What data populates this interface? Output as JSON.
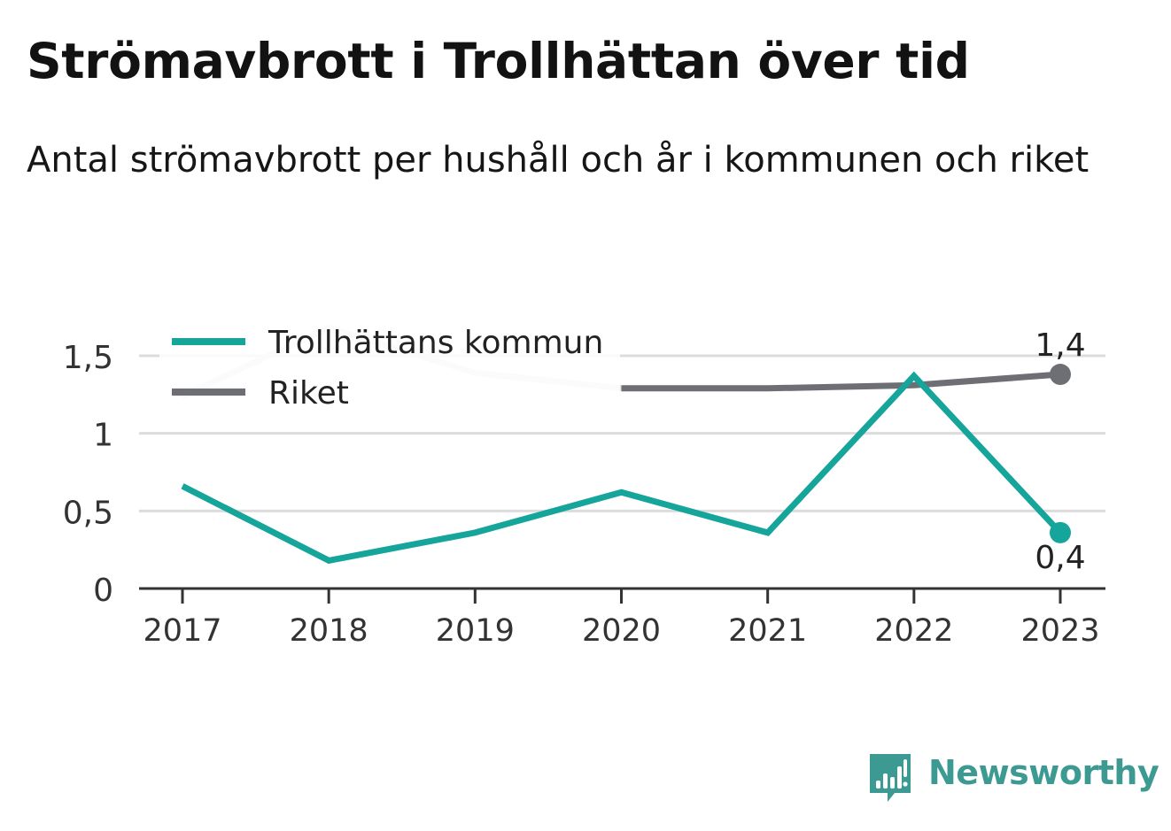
{
  "title": "Strömavbrott i Trollhättan över tid",
  "subtitle": "Antal strömavbrott per hushåll och år i kommunen och riket",
  "brand": {
    "name": "Newsworthy",
    "icon": "bar-chart-speech-bubble-icon",
    "color": "#3d9a92"
  },
  "chart_data": {
    "type": "line",
    "title": "Strömavbrott i Trollhättan över tid",
    "subtitle": "Antal strömavbrott per hushåll och år i kommunen och riket",
    "xlabel": "",
    "ylabel": "",
    "x": [
      "2017",
      "2018",
      "2019",
      "2020",
      "2021",
      "2022",
      "2023"
    ],
    "ylim": [
      0,
      1.75
    ],
    "yticks": [
      0,
      0.5,
      1,
      1.5
    ],
    "ytick_labels": [
      "0",
      "0,5",
      "1",
      "1,5"
    ],
    "grid": true,
    "legend": "top-left",
    "series": [
      {
        "name": "Trollhättans kommun",
        "color": "#16a59a",
        "values": [
          0.66,
          0.18,
          0.36,
          0.62,
          0.36,
          1.37,
          0.36
        ],
        "end_label": "0,4"
      },
      {
        "name": "Riket",
        "color": "#6e6e75",
        "faded_color": "#e3e3e3",
        "faded_until": "2020",
        "values": [
          1.24,
          1.68,
          1.39,
          1.29,
          1.29,
          1.31,
          1.38
        ],
        "end_label": "1,4"
      }
    ]
  }
}
